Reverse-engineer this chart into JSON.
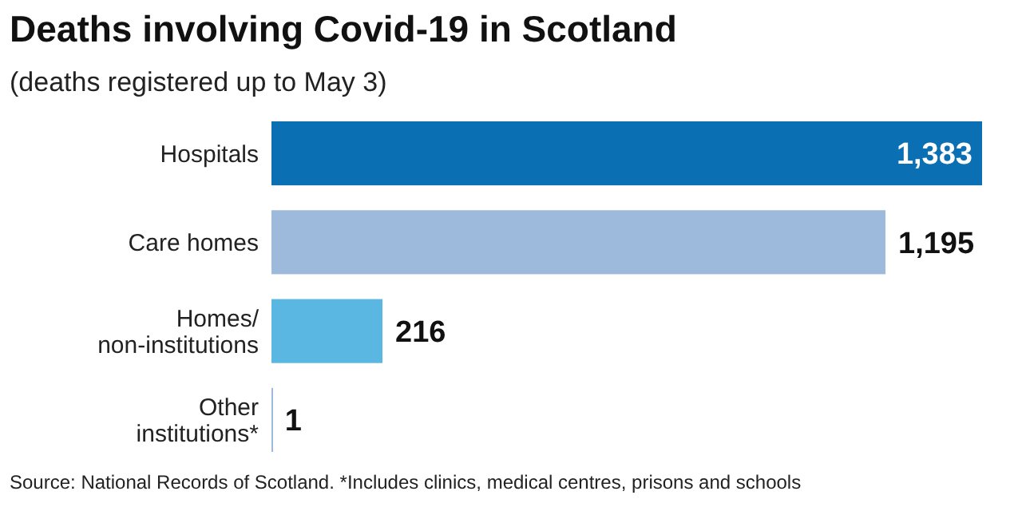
{
  "chart_data": {
    "type": "bar",
    "orientation": "horizontal",
    "title": "Deaths involving Covid-19 in Scotland",
    "subtitle": "(deaths registered up to May 3)",
    "categories": [
      "Hospitals",
      "Care homes",
      "Homes/ non-institutions",
      "Other institutions*"
    ],
    "values": [
      1383,
      1195,
      216,
      1
    ],
    "colors": [
      "#0a70b3",
      "#9db9dc",
      "#5ab7e1",
      "#9db9dc"
    ],
    "value_labels": [
      "1,383",
      "1,195",
      "216",
      "1"
    ],
    "annotations": [
      "Source: National Records of Scotland. *Includes clinics, medical centres, prisons and schools"
    ]
  }
}
